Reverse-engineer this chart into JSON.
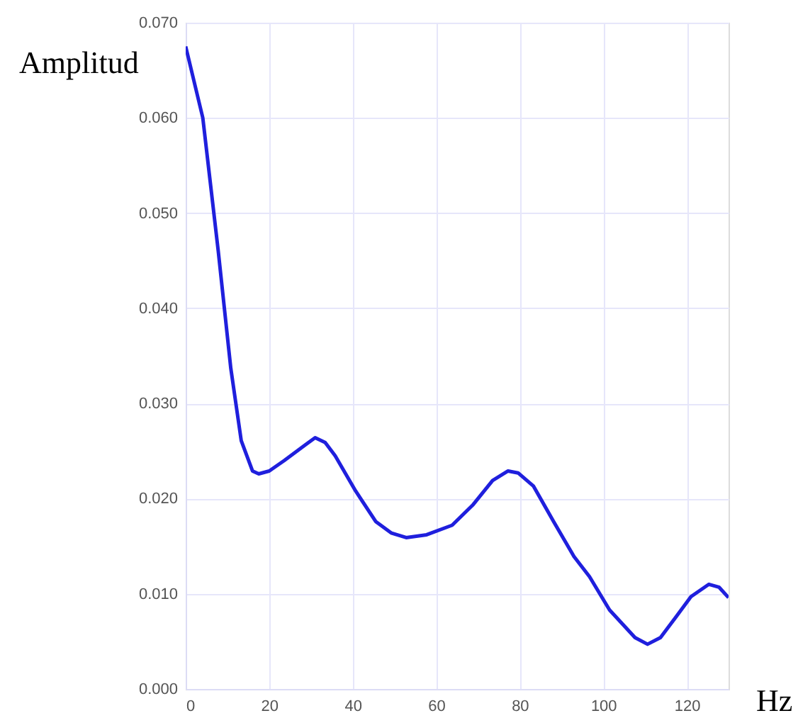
{
  "chart_data": {
    "type": "line",
    "xlabel": "Hz",
    "ylabel": "Amplitud",
    "x": [
      0,
      4.1,
      7.8,
      10.8,
      13.3,
      16,
      17.5,
      20,
      23.6,
      28.5,
      31,
      33.4,
      35.8,
      40.7,
      45.5,
      49.2,
      52.8,
      57.7,
      63.8,
      68.7,
      73.5,
      77.2,
      79.6,
      83.3,
      88.1,
      93,
      96.7,
      101.5,
      107.6,
      110.6,
      113.7,
      117.3,
      121,
      125.3,
      127.7,
      130
    ],
    "series": [
      {
        "color": "#1f1fdd",
        "values": [
          0.0675,
          0.06,
          0.046,
          0.0337,
          0.0261,
          0.0229,
          0.0226,
          0.0229,
          0.024,
          0.0256,
          0.0264,
          0.0259,
          0.0245,
          0.0208,
          0.0176,
          0.0164,
          0.0159,
          0.0162,
          0.0172,
          0.0193,
          0.0219,
          0.0229,
          0.0227,
          0.0213,
          0.0176,
          0.0139,
          0.0118,
          0.0083,
          0.0054,
          0.0047,
          0.0054,
          0.0075,
          0.0097,
          0.011,
          0.0107,
          0.0096
        ]
      }
    ],
    "xlim": [
      0,
      130
    ],
    "xticks": [
      0,
      20,
      40,
      60,
      80,
      100,
      120
    ],
    "ylim": [
      0,
      0.07
    ],
    "yticks": [
      {
        "value": 0,
        "label": "0.000"
      },
      {
        "value": 0.01,
        "label": "0.010"
      },
      {
        "value": 0.02,
        "label": "0.020"
      },
      {
        "value": 0.03,
        "label": "0.030"
      },
      {
        "value": 0.04,
        "label": "0.040"
      },
      {
        "value": 0.05,
        "label": "0.050"
      },
      {
        "value": 0.06,
        "label": "0.060"
      },
      {
        "value": 0.07,
        "label": "0.070"
      }
    ],
    "grid": true,
    "legend": false,
    "marker": "none",
    "line_style": "solid"
  }
}
